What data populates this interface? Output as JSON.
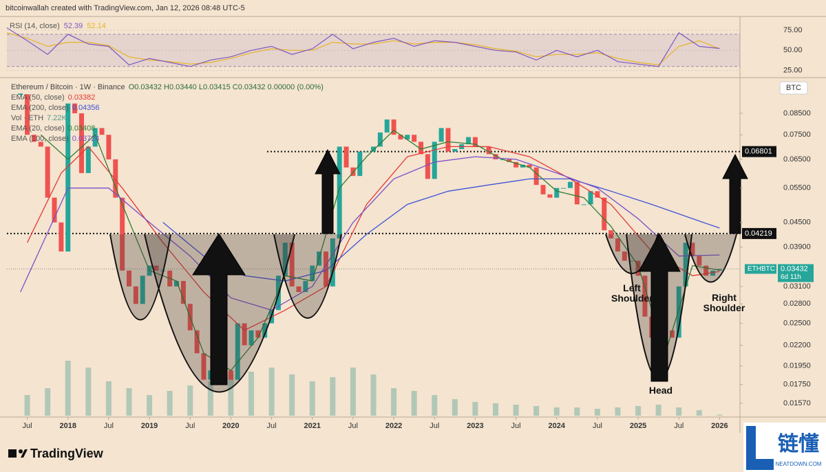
{
  "header": "bitcoinwallah created with TradingView.com, Jan 12, 2026 08:48 UTC-5",
  "logo": "TradingView",
  "watermark": {
    "title": "链懂",
    "subtitle": "NEATDOWN.COM"
  },
  "chart_data": [
    {
      "type": "line",
      "title": "RSI (14, close)",
      "x": [
        "2017-04",
        "2017-07",
        "2017-10",
        "2018-01",
        "2018-04",
        "2018-07",
        "2018-10",
        "2019-01",
        "2019-04",
        "2019-07",
        "2019-10",
        "2020-01",
        "2020-04",
        "2020-07",
        "2020-10",
        "2021-01",
        "2021-04",
        "2021-07",
        "2021-10",
        "2022-01",
        "2022-04",
        "2022-07",
        "2022-10",
        "2023-01",
        "2023-04",
        "2023-07",
        "2023-10",
        "2024-01",
        "2024-04",
        "2024-07",
        "2024-10",
        "2025-01",
        "2025-04",
        "2025-07",
        "2025-10",
        "2026-01"
      ],
      "series": [
        {
          "color": "#7e57c2",
          "values": [
            78,
            62,
            45,
            70,
            58,
            55,
            32,
            40,
            35,
            30,
            38,
            42,
            50,
            55,
            45,
            52,
            70,
            52,
            60,
            65,
            55,
            62,
            60,
            55,
            50,
            48,
            38,
            50,
            42,
            50,
            36,
            33,
            30,
            72,
            55,
            52.39
          ]
        },
        {
          "color": "#e6b422",
          "values": [
            72,
            65,
            55,
            60,
            60,
            56,
            42,
            38,
            36,
            33,
            35,
            40,
            47,
            52,
            50,
            50,
            60,
            58,
            58,
            62,
            58,
            60,
            60,
            57,
            52,
            49,
            42,
            45,
            45,
            47,
            40,
            35,
            32,
            55,
            62,
            52.14
          ]
        }
      ],
      "xlim": [
        "2017-04",
        "2026-04"
      ],
      "ylim": [
        17,
        87
      ],
      "yticks": [
        {
          "value": 25,
          "label": "25.00"
        },
        {
          "value": 50,
          "label": "50.00"
        },
        {
          "value": 75,
          "label": "75.00"
        }
      ],
      "band": [
        30,
        70
      ]
    },
    {
      "type": "candlestick",
      "title": "Ethereum / Bitcoin · 1W · Binance",
      "ohlc": "O0.03432 H0.03440 L0.03415 C0.03432 0.00000 (0.00%)",
      "symbol": "ETHBTC",
      "countdown": "6d 11h",
      "currency": "BTC",
      "x": [
        "2017-06",
        "2017-07",
        "2017-08",
        "2017-09",
        "2017-10",
        "2017-11",
        "2017-12",
        "2018-01",
        "2018-02",
        "2018-03",
        "2018-04",
        "2018-05",
        "2018-06",
        "2018-07",
        "2018-08",
        "2018-09",
        "2018-10",
        "2018-11",
        "2018-12",
        "2019-01",
        "2019-02",
        "2019-03",
        "2019-04",
        "2019-05",
        "2019-06",
        "2019-07",
        "2019-08",
        "2019-09",
        "2019-10",
        "2019-11",
        "2019-12",
        "2020-01",
        "2020-02",
        "2020-03",
        "2020-04",
        "2020-05",
        "2020-06",
        "2020-07",
        "2020-08",
        "2020-09",
        "2020-10",
        "2020-11",
        "2020-12",
        "2021-01",
        "2021-02",
        "2021-03",
        "2021-04",
        "2021-05",
        "2021-06",
        "2021-07",
        "2021-08",
        "2021-09",
        "2021-10",
        "2021-11",
        "2021-12",
        "2022-01",
        "2022-02",
        "2022-03",
        "2022-04",
        "2022-05",
        "2022-06",
        "2022-07",
        "2022-08",
        "2022-09",
        "2022-10",
        "2022-11",
        "2022-12",
        "2023-01",
        "2023-02",
        "2023-03",
        "2023-04",
        "2023-05",
        "2023-06",
        "2023-07",
        "2023-08",
        "2023-09",
        "2023-10",
        "2023-11",
        "2023-12",
        "2024-01",
        "2024-02",
        "2024-03",
        "2024-04",
        "2024-05",
        "2024-06",
        "2024-07",
        "2024-08",
        "2024-09",
        "2024-10",
        "2024-11",
        "2024-12",
        "2025-01",
        "2025-02",
        "2025-03",
        "2025-04",
        "2025-05",
        "2025-06",
        "2025-07",
        "2025-08",
        "2025-09",
        "2025-10",
        "2025-11",
        "2025-12",
        "2026-01"
      ],
      "values": [
        0.095,
        0.075,
        0.072,
        0.07,
        0.052,
        0.045,
        0.038,
        0.09,
        0.085,
        0.06,
        0.07,
        0.078,
        0.075,
        0.065,
        0.052,
        0.034,
        0.031,
        0.028,
        0.033,
        0.035,
        0.034,
        0.034,
        0.031,
        0.032,
        0.028,
        0.024,
        0.021,
        0.018,
        0.019,
        0.021,
        0.019,
        0.018,
        0.025,
        0.022,
        0.024,
        0.023,
        0.025,
        0.027,
        0.033,
        0.04,
        0.031,
        0.03,
        0.032,
        0.035,
        0.038,
        0.031,
        0.041,
        0.07,
        0.062,
        0.059,
        0.068,
        0.068,
        0.07,
        0.076,
        0.082,
        0.075,
        0.073,
        0.075,
        0.072,
        0.067,
        0.058,
        0.072,
        0.078,
        0.068,
        0.069,
        0.071,
        0.074,
        0.07,
        0.07,
        0.067,
        0.065,
        0.065,
        0.064,
        0.062,
        0.063,
        0.062,
        0.056,
        0.053,
        0.052,
        0.055,
        0.055,
        0.057,
        0.05,
        0.05,
        0.054,
        0.052,
        0.043,
        0.041,
        0.038,
        0.036,
        0.036,
        0.033,
        0.026,
        0.023,
        0.019,
        0.024,
        0.023,
        0.031,
        0.04,
        0.037,
        0.035,
        0.033,
        0.034,
        0.03432
      ],
      "up_color": "#26a69a",
      "down_color": "#ef5350",
      "series": [
        {
          "name": "EMA (50, close)",
          "color": "#e53935",
          "x": [
            "2017-07",
            "2017-12",
            "2018-04",
            "2018-09",
            "2019-03",
            "2019-09",
            "2020-03",
            "2020-09",
            "2021-03",
            "2021-09",
            "2022-03",
            "2022-09",
            "2023-03",
            "2023-09",
            "2024-03",
            "2024-09",
            "2025-03",
            "2025-09",
            "2026-01"
          ],
          "values": [
            0.04,
            0.06,
            0.07,
            0.055,
            0.04,
            0.03,
            0.024,
            0.027,
            0.031,
            0.05,
            0.066,
            0.07,
            0.07,
            0.066,
            0.058,
            0.05,
            0.038,
            0.033,
            0.03382
          ]
        },
        {
          "name": "EMA (200, close)",
          "color": "#3f51d8",
          "x": [
            "2019-03",
            "2019-09",
            "2020-03",
            "2020-09",
            "2021-03",
            "2021-09",
            "2022-03",
            "2022-09",
            "2023-03",
            "2023-09",
            "2024-03",
            "2024-09",
            "2025-03",
            "2025-09",
            "2026-01"
          ],
          "values": [
            0.045,
            0.037,
            0.033,
            0.032,
            0.034,
            0.042,
            0.05,
            0.054,
            0.056,
            0.058,
            0.058,
            0.054,
            0.05,
            0.046,
            0.04356
          ]
        },
        {
          "name": "EMA (20, close)",
          "color": "#2e7d32",
          "x": [
            "2017-09",
            "2018-01",
            "2018-05",
            "2018-09",
            "2019-01",
            "2019-05",
            "2019-09",
            "2020-01",
            "2020-05",
            "2020-09",
            "2021-01",
            "2021-05",
            "2021-09",
            "2022-01",
            "2022-05",
            "2022-09",
            "2023-01",
            "2023-05",
            "2023-09",
            "2024-01",
            "2024-05",
            "2024-09",
            "2025-01",
            "2025-05",
            "2025-09",
            "2026-01"
          ],
          "values": [
            0.075,
            0.065,
            0.075,
            0.05,
            0.034,
            0.032,
            0.021,
            0.019,
            0.023,
            0.033,
            0.032,
            0.055,
            0.066,
            0.077,
            0.069,
            0.072,
            0.071,
            0.065,
            0.062,
            0.054,
            0.052,
            0.044,
            0.035,
            0.021,
            0.035,
            0.03408
          ]
        },
        {
          "name": "EMA (100, close)",
          "color": "#7b4fc9",
          "x": [
            "2017-06",
            "2018-01",
            "2018-07",
            "2019-01",
            "2019-07",
            "2020-01",
            "2020-07",
            "2021-01",
            "2021-07",
            "2022-01",
            "2022-07",
            "2023-01",
            "2023-07",
            "2024-01",
            "2024-07",
            "2025-01",
            "2025-07",
            "2026-01"
          ],
          "values": [
            0.03,
            0.055,
            0.055,
            0.045,
            0.037,
            0.029,
            0.027,
            0.031,
            0.045,
            0.058,
            0.064,
            0.066,
            0.065,
            0.06,
            0.055,
            0.046,
            0.037,
            0.03724
          ]
        }
      ],
      "volume": {
        "name": "Vol · ETH",
        "color": "#4f9e8f",
        "last_label": "7.22K",
        "x": [
          "2017-07",
          "2017-10",
          "2018-01",
          "2018-04",
          "2018-07",
          "2018-10",
          "2019-01",
          "2019-04",
          "2019-07",
          "2019-10",
          "2020-01",
          "2020-04",
          "2020-07",
          "2020-10",
          "2021-01",
          "2021-04",
          "2021-07",
          "2021-10",
          "2022-01",
          "2022-04",
          "2022-07",
          "2022-10",
          "2023-01",
          "2023-04",
          "2023-07",
          "2023-10",
          "2024-01",
          "2024-04",
          "2024-07",
          "2024-10",
          "2025-01",
          "2025-04",
          "2025-07",
          "2025-10",
          "2026-01"
        ],
        "values": [
          150,
          200,
          400,
          350,
          250,
          200,
          150,
          180,
          220,
          250,
          300,
          320,
          350,
          300,
          250,
          280,
          350,
          300,
          200,
          180,
          150,
          120,
          100,
          90,
          80,
          70,
          60,
          60,
          50,
          60,
          70,
          80,
          60,
          40,
          7.22
        ],
        "vlim": [
          0,
          600
        ]
      },
      "levels": [
        0.06801,
        0.04219
      ],
      "xlim": [
        "2017-04",
        "2026-04"
      ],
      "ylim": [
        0.0146,
        0.1038
      ],
      "log_scale": true,
      "yticks": [
        {
          "value": 0.0157,
          "label": "0.01570"
        },
        {
          "value": 0.0175,
          "label": "0.01750"
        },
        {
          "value": 0.0195,
          "label": "0.01950"
        },
        {
          "value": 0.022,
          "label": "0.02200"
        },
        {
          "value": 0.025,
          "label": "0.02500"
        },
        {
          "value": 0.028,
          "label": "0.02800"
        },
        {
          "value": 0.031,
          "label": "0.03100"
        },
        {
          "value": 0.039,
          "label": "0.03900"
        },
        {
          "value": 0.045,
          "label": "0.04500"
        },
        {
          "value": 0.055,
          "label": "0.05500"
        },
        {
          "value": 0.065,
          "label": "0.06500"
        },
        {
          "value": 0.075,
          "label": "0.07500"
        },
        {
          "value": 0.085,
          "label": "0.08500"
        }
      ],
      "xticks": [
        {
          "value": "2017-07",
          "label": "Jul"
        },
        {
          "value": "2018-01",
          "label": "2018"
        },
        {
          "value": "2018-07",
          "label": "Jul"
        },
        {
          "value": "2019-01",
          "label": "2019"
        },
        {
          "value": "2019-07",
          "label": "Jul"
        },
        {
          "value": "2020-01",
          "label": "2020"
        },
        {
          "value": "2020-07",
          "label": "Jul"
        },
        {
          "value": "2021-01",
          "label": "2021"
        },
        {
          "value": "2021-07",
          "label": "Jul"
        },
        {
          "value": "2022-01",
          "label": "2022"
        },
        {
          "value": "2022-07",
          "label": "Jul"
        },
        {
          "value": "2023-01",
          "label": "2023"
        },
        {
          "value": "2023-07",
          "label": "Jul"
        },
        {
          "value": "2024-01",
          "label": "2024"
        },
        {
          "value": "2024-07",
          "label": "Jul"
        },
        {
          "value": "2025-01",
          "label": "2025"
        },
        {
          "value": "2025-07",
          "label": "Jul"
        },
        {
          "value": "2026-01",
          "label": "2026"
        }
      ],
      "annotations": [
        "Left Shoulder",
        "Head",
        "Right Shoulder"
      ]
    }
  ]
}
